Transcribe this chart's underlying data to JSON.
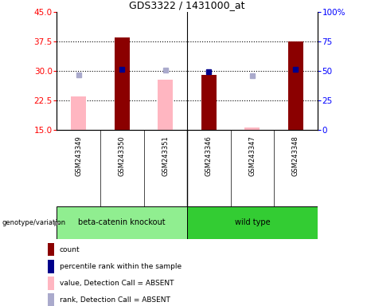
{
  "title": "GDS3322 / 1431000_at",
  "samples": [
    "GSM243349",
    "GSM243350",
    "GSM243351",
    "GSM243346",
    "GSM243347",
    "GSM243348"
  ],
  "group_labels": [
    "beta-catenin knockout",
    "wild type"
  ],
  "ylim_left": [
    15,
    45
  ],
  "ylim_right": [
    0,
    100
  ],
  "yticks_left": [
    15,
    22.5,
    30,
    37.5,
    45
  ],
  "yticks_right": [
    0,
    25,
    50,
    75,
    100
  ],
  "red_bars": [
    null,
    38.5,
    null,
    29.0,
    null,
    37.5
  ],
  "pink_bars": [
    23.5,
    null,
    27.9,
    null,
    15.6,
    null
  ],
  "blue_sq_left": [
    null,
    30.5,
    null,
    29.8,
    null,
    30.5
  ],
  "lav_sq_left": [
    29.0,
    null,
    30.2,
    null,
    28.8,
    null
  ],
  "red_color": "#8B0000",
  "pink_color": "#FFB6C1",
  "blue_color": "#00008B",
  "lav_color": "#AAAACC",
  "dotted_vals": [
    22.5,
    30.0,
    37.5
  ],
  "bar_width": 0.35,
  "sample_bg": "#C8C8C8",
  "group1_color": "#90EE90",
  "group2_color": "#33CC33",
  "legend_items": [
    {
      "color": "#8B0000",
      "label": "count"
    },
    {
      "color": "#00008B",
      "label": "percentile rank within the sample"
    },
    {
      "color": "#FFB6C1",
      "label": "value, Detection Call = ABSENT"
    },
    {
      "color": "#AAAACC",
      "label": "rank, Detection Call = ABSENT"
    }
  ]
}
